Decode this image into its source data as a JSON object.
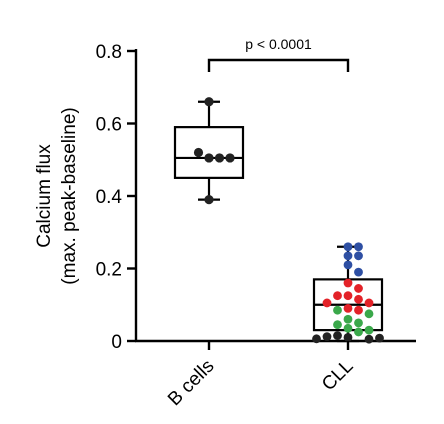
{
  "chart_data": {
    "type": "boxplot",
    "title": "",
    "ylabel_line1": "Calcium flux",
    "ylabel_line2": "(max. peak-baseline)",
    "ylim": [
      0,
      0.8
    ],
    "yticks": [
      "0",
      "0.2",
      "0.4",
      "0.6",
      "0.8"
    ],
    "ytick_values": [
      0,
      0.2,
      0.4,
      0.6,
      0.8
    ],
    "categories": [
      "B cells",
      "CLL"
    ],
    "significance": {
      "text": "p < 0.0001",
      "between": [
        "B cells",
        "CLL"
      ]
    },
    "groups": [
      {
        "name": "B cells",
        "box": {
          "min": 0.39,
          "q1": 0.45,
          "median": 0.505,
          "q3": 0.59,
          "max": 0.66
        },
        "points": [
          {
            "y": 0.66,
            "color": "#222222"
          },
          {
            "y": 0.505,
            "color": "#222222"
          },
          {
            "y": 0.505,
            "color": "#222222"
          },
          {
            "y": 0.52,
            "color": "#222222"
          },
          {
            "y": 0.505,
            "color": "#222222"
          },
          {
            "y": 0.39,
            "color": "#222222"
          }
        ]
      },
      {
        "name": "CLL",
        "box": {
          "min": 0.0,
          "q1": 0.03,
          "median": 0.1,
          "q3": 0.17,
          "max": 0.26
        },
        "points": [
          {
            "y": 0.26,
            "color": "#2e4fa3"
          },
          {
            "y": 0.26,
            "color": "#2e4fa3"
          },
          {
            "y": 0.235,
            "color": "#2e4fa3"
          },
          {
            "y": 0.235,
            "color": "#2e4fa3"
          },
          {
            "y": 0.21,
            "color": "#2e4fa3"
          },
          {
            "y": 0.19,
            "color": "#2e4fa3"
          },
          {
            "y": 0.16,
            "color": "#e32228"
          },
          {
            "y": 0.145,
            "color": "#e32228"
          },
          {
            "y": 0.125,
            "color": "#e32228"
          },
          {
            "y": 0.125,
            "color": "#e32228"
          },
          {
            "y": 0.115,
            "color": "#e32228"
          },
          {
            "y": 0.105,
            "color": "#e32228"
          },
          {
            "y": 0.105,
            "color": "#e32228"
          },
          {
            "y": 0.09,
            "color": "#e32228"
          },
          {
            "y": 0.085,
            "color": "#e32228"
          },
          {
            "y": 0.085,
            "color": "#3aa84a"
          },
          {
            "y": 0.075,
            "color": "#3aa84a"
          },
          {
            "y": 0.06,
            "color": "#3aa84a"
          },
          {
            "y": 0.05,
            "color": "#3aa84a"
          },
          {
            "y": 0.045,
            "color": "#3aa84a"
          },
          {
            "y": 0.035,
            "color": "#3aa84a"
          },
          {
            "y": 0.03,
            "color": "#3aa84a"
          },
          {
            "y": 0.025,
            "color": "#3aa84a"
          },
          {
            "y": 0.015,
            "color": "#222222"
          },
          {
            "y": 0.012,
            "color": "#222222"
          },
          {
            "y": 0.01,
            "color": "#222222"
          },
          {
            "y": 0.008,
            "color": "#222222"
          },
          {
            "y": 0.006,
            "color": "#222222"
          },
          {
            "y": 0.005,
            "color": "#222222"
          }
        ]
      }
    ]
  }
}
